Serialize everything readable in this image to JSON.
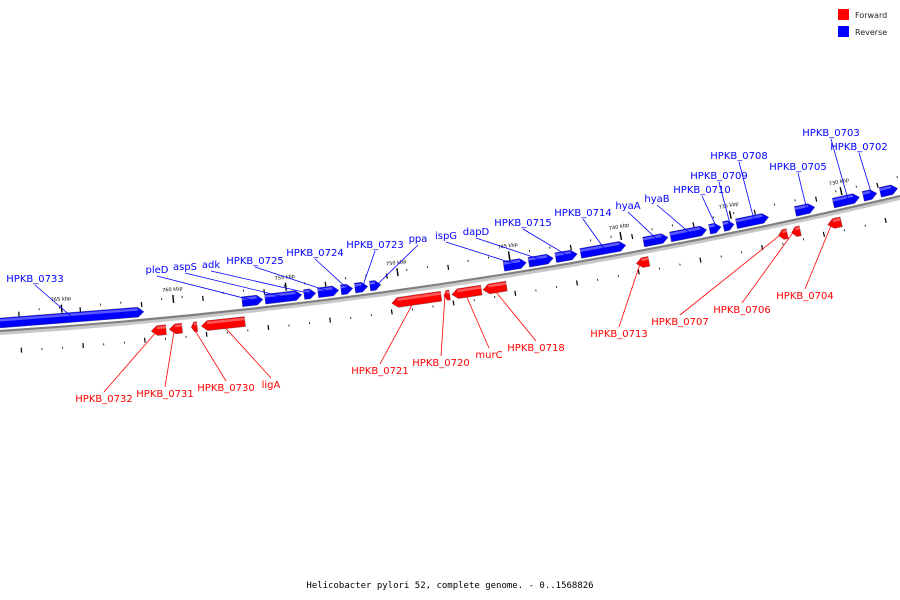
{
  "legend": {
    "forward_label": "Forward",
    "reverse_label": "Reverse",
    "forward_color": "#ff0000",
    "reverse_color": "#0000ff"
  },
  "footer": {
    "caption": "Helicobacter pylori 52, complete genome. - 0..1568826"
  },
  "colors": {
    "forward": "#ff0000",
    "reverse": "#0000ff",
    "backbone": "#808080"
  },
  "ruler_labels": [
    "765 kbp",
    "760 kbp",
    "755 kbp",
    "750 kbp",
    "745 kbp",
    "740 kbp",
    "735 kbp",
    "730 kbp"
  ],
  "reverse_genes": [
    "HPKB_0733",
    "pleD",
    "aspS",
    "adk",
    "HPKB_0725",
    "HPKB_0724",
    "HPKB_0723",
    "ppa",
    "ispG",
    "dapD",
    "HPKB_0715",
    "HPKB_0714",
    "hyaA",
    "hyaB",
    "HPKB_0710",
    "HPKB_0709",
    "HPKB_0708",
    "HPKB_0705",
    "HPKB_0703",
    "HPKB_0702"
  ],
  "forward_genes": [
    "HPKB_0732",
    "HPKB_0731",
    "HPKB_0730",
    "ligA",
    "HPKB_0721",
    "HPKB_0720",
    "murC",
    "HPKB_0718",
    "HPKB_0713",
    "HPKB_0707",
    "HPKB_0706",
    "HPKB_0704"
  ]
}
